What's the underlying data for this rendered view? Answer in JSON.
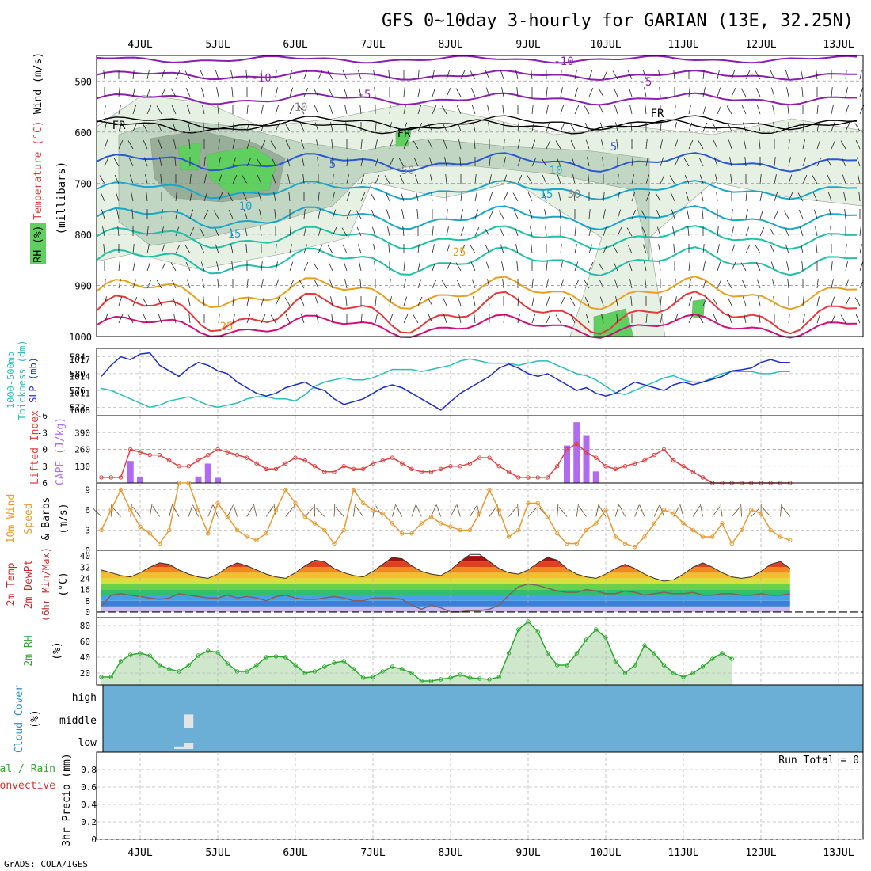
{
  "title": "GFS 0~10day 3-hourly for GARIAN (13E, 32.25N)",
  "footer": "GrADS: COLA/IGES",
  "days": [
    "4JUL",
    "5JUL",
    "6JUL",
    "7JUL",
    "8JUL",
    "9JUL",
    "10JUL",
    "11JUL",
    "12JUL",
    "13JUL"
  ],
  "colors": {
    "rh_light": "#e6f1e4",
    "rh_mid": "#c2d6c4",
    "rh_dark": "#98ae98",
    "rh_green": "#5fd05f",
    "wind_purple": "#8a1fb0",
    "temp_fr": "#000000",
    "temp_blue": "#2a58cf",
    "temp_cyan": "#1aa6c9",
    "temp_teal": "#1fbfa8",
    "temp_orange": "#e6a020",
    "temp_red": "#e23a3a",
    "temp_magenta": "#d0107a",
    "slp": "#1a2ec8",
    "thickness": "#2bbdb8",
    "cape": "#b06cf0",
    "lifted": "#e04040",
    "wind10": "#e69a30",
    "rh2m": "#2ea82e",
    "cloud": "#6baed6"
  },
  "chart_data": [
    {
      "type": "heatmap",
      "panel": "upper-air",
      "ylabel": "(millibars)",
      "side_labels": [
        "RH (%)",
        "Temperature (°C)",
        "Wind (m/s)"
      ],
      "ylim": [
        1000,
        450
      ],
      "ticks": [
        "500",
        "600",
        "700",
        "800",
        "900",
        "1000"
      ],
      "contour_labels": [
        "-10",
        "-10",
        "-5",
        "-5",
        "FR",
        "FR",
        "FR",
        "5",
        "5",
        "10",
        "10",
        "15",
        "15",
        "25",
        "25",
        "10",
        "50",
        "30"
      ]
    },
    {
      "type": "line",
      "panel": "slp-thickness",
      "side_labels": [
        "1000-500mb",
        "Thickness (dm)",
        "SLP (mb)"
      ],
      "left_ticks": [
        "584",
        "580",
        "576",
        "572"
      ],
      "right_ticks": [
        "1017",
        "1014",
        "1011",
        "1008"
      ],
      "left_range": [
        570,
        586
      ],
      "right_range": [
        1007,
        1019
      ],
      "series": [
        {
          "name": "SLP (mb)",
          "axis": "right",
          "values": [
            1014,
            1016,
            1017.5,
            1017,
            1018,
            1018.2,
            1016,
            1015,
            1014,
            1015.5,
            1016.5,
            1016,
            1015,
            1014.5,
            1013,
            1012,
            1011,
            1010.5,
            1011,
            1012,
            1012.5,
            1013,
            1012,
            1011.5,
            1010,
            1009,
            1009.5,
            1010,
            1011,
            1012,
            1012.5,
            1012,
            1011,
            1010,
            1009,
            1008,
            1009.5,
            1011,
            1012,
            1013,
            1014,
            1015.5,
            1016.2,
            1015.5,
            1014.5,
            1014,
            1014.5,
            1013.5,
            1012.5,
            1011.5,
            1012,
            1011,
            1010.5,
            1011,
            1012,
            1013,
            1012.5,
            1012,
            1011.5,
            1012.5,
            1013,
            1012.5,
            1013,
            1013.5,
            1014,
            1015,
            1015.2,
            1015.5,
            1016.5,
            1017,
            1016.5,
            1016.5
          ]
        },
        {
          "name": "Thickness (dm)",
          "axis": "left",
          "values": [
            576.5,
            576,
            575,
            574,
            573,
            572,
            572.5,
            573.5,
            574,
            574.5,
            573.5,
            572.5,
            572,
            572.5,
            573,
            574,
            574.5,
            574.5,
            574,
            574,
            573.5,
            575,
            577,
            578,
            578.5,
            579,
            578.5,
            578.5,
            579,
            580,
            581,
            581,
            581,
            580.5,
            581,
            581.5,
            582,
            583,
            583.5,
            583,
            582.5,
            582.5,
            582.5,
            582,
            582.5,
            583,
            583,
            582,
            581,
            580,
            579.5,
            578.5,
            577,
            575.5,
            575,
            576,
            577,
            578,
            579,
            579.5,
            578.5,
            578,
            578,
            579,
            580,
            580.5,
            580.5,
            580.5,
            580,
            580,
            580.5,
            580.5
          ]
        }
      ]
    },
    {
      "type": "bar",
      "panel": "cape-lifted",
      "side_labels": [
        "Lifted Index",
        "CAPE (J/kg)"
      ],
      "left_ticks": [
        "-6",
        "-3",
        "0",
        "3",
        "6"
      ],
      "right_ticks": [
        "390",
        "260",
        "130"
      ],
      "left_range": [
        6,
        -6
      ],
      "right_range": [
        0,
        520
      ],
      "series": [
        {
          "name": "CAPE (J/kg)",
          "axis": "right",
          "values": [
            0,
            0,
            0,
            170,
            50,
            0,
            0,
            0,
            0,
            0,
            50,
            150,
            40,
            0,
            0,
            0,
            0,
            0,
            0,
            0,
            0,
            0,
            0,
            0,
            0,
            0,
            0,
            0,
            0,
            0,
            0,
            0,
            0,
            0,
            0,
            0,
            0,
            0,
            0,
            0,
            0,
            0,
            0,
            0,
            0,
            0,
            0,
            0,
            290,
            470,
            370,
            90,
            0,
            0,
            0,
            0,
            0,
            0,
            0,
            0,
            0,
            0,
            0,
            0,
            0,
            0,
            0,
            0,
            0,
            0,
            0,
            0
          ]
        },
        {
          "name": "Lifted Index",
          "axis": "left",
          "values": [
            5,
            5,
            5,
            0,
            0.5,
            1,
            1,
            2,
            3,
            3,
            2,
            1,
            0,
            0.5,
            1,
            1.5,
            2.5,
            3.5,
            3.5,
            2.5,
            1.5,
            2,
            3,
            4,
            4,
            3,
            3.5,
            3.5,
            2.5,
            2,
            1.5,
            2.5,
            3.5,
            4,
            4,
            3.5,
            3,
            3,
            2.5,
            1.5,
            1.5,
            3,
            4,
            5,
            5,
            5,
            5,
            3,
            0,
            -1,
            0.5,
            1.5,
            3,
            3.5,
            3,
            2.5,
            2,
            1,
            0,
            2,
            3,
            4,
            5,
            6,
            6,
            6,
            6,
            6,
            6,
            6,
            6,
            6
          ]
        }
      ]
    },
    {
      "type": "line",
      "panel": "wind10",
      "side_labels": [
        "10m Wind",
        "Speed",
        "& Barbs"
      ],
      "ylabel": "(m/s)",
      "ticks": [
        "9",
        "6",
        "3",
        "0"
      ],
      "ylim": [
        0,
        10
      ],
      "series": [
        {
          "name": "Speed",
          "values": [
            3,
            6,
            9,
            6,
            3.5,
            2.5,
            1,
            3,
            10,
            10,
            6,
            2.5,
            7,
            5,
            3,
            2,
            1.5,
            2.5,
            6,
            9,
            7,
            5,
            4,
            3,
            1,
            3,
            9,
            7,
            6,
            5.5,
            4,
            2.5,
            2.5,
            4,
            5,
            4,
            3.5,
            3,
            3,
            5.5,
            9,
            6,
            2,
            3,
            7,
            7,
            5,
            2.5,
            1,
            1,
            3,
            4,
            6,
            2,
            1,
            0.5,
            2,
            4,
            6,
            5.5,
            4,
            3,
            2,
            2,
            4,
            1,
            3,
            6,
            5.5,
            3,
            2,
            1.5
          ]
        }
      ]
    },
    {
      "type": "area",
      "panel": "temperature",
      "side_labels": [
        "2m Temp",
        "2m DewPt",
        "(6hr Min/Max)"
      ],
      "ylabel": "(°C)",
      "ticks": [
        "40",
        "32",
        "24",
        "16",
        "8",
        "0"
      ],
      "ylim": [
        -4,
        44
      ],
      "series": [
        {
          "name": "2m Temp",
          "values": [
            30,
            28,
            26,
            25,
            28,
            32,
            35,
            34,
            30,
            27,
            25,
            24,
            27,
            32,
            35,
            33,
            30,
            27,
            25,
            24,
            28,
            33,
            37,
            36,
            31,
            28,
            26,
            25,
            29,
            34,
            39,
            38,
            33,
            29,
            27,
            26,
            30,
            36,
            41,
            41,
            36,
            31,
            28,
            27,
            30,
            35,
            39,
            37,
            31,
            27,
            25,
            24,
            27,
            31,
            34,
            31,
            27,
            24,
            22,
            23,
            27,
            32,
            35,
            32,
            28,
            25,
            24,
            25,
            29,
            34,
            36,
            31
          ]
        },
        {
          "name": "2m DewPt",
          "values": [
            4,
            12,
            13,
            12,
            11,
            10,
            9,
            10,
            13,
            12,
            11,
            10,
            10,
            12,
            10,
            11,
            10,
            8,
            11,
            12,
            10,
            9,
            9,
            10,
            11,
            10,
            8,
            8,
            10,
            10,
            10,
            9,
            5,
            2,
            5,
            3,
            0,
            0,
            1,
            1,
            2,
            5,
            12,
            18,
            20,
            19,
            17,
            15,
            14,
            14,
            16,
            15,
            13,
            13,
            15,
            14,
            12,
            13,
            14,
            13,
            13,
            14,
            12,
            12,
            13,
            13,
            12,
            12,
            13,
            12,
            12,
            13
          ]
        }
      ]
    },
    {
      "type": "area",
      "panel": "rh2m",
      "side_labels": [
        "2m RH"
      ],
      "ylabel": "(%)",
      "ticks": [
        "80",
        "60",
        "40",
        "20"
      ],
      "ylim": [
        5,
        90
      ],
      "series": [
        {
          "name": "2m RH",
          "values": [
            15,
            15,
            35,
            43,
            45,
            42,
            30,
            25,
            22,
            30,
            42,
            48,
            46,
            32,
            22,
            22,
            30,
            40,
            41,
            40,
            30,
            20,
            22,
            28,
            33,
            35,
            25,
            14,
            15,
            22,
            28,
            25,
            20,
            10,
            10,
            12,
            14,
            18,
            14,
            13,
            12,
            15,
            45,
            75,
            85,
            72,
            45,
            30,
            30,
            45,
            62,
            75,
            65,
            35,
            20,
            30,
            55,
            45,
            30,
            20,
            15,
            20,
            28,
            38,
            45,
            38
          ]
        }
      ]
    },
    {
      "type": "bar",
      "panel": "cloud",
      "side_labels": [
        "Cloud Cover",
        "(%)"
      ],
      "ticks": [
        "high",
        "middle",
        "low"
      ],
      "series": [
        {
          "name": "low",
          "values": [
            0,
            0,
            0,
            0,
            0,
            0,
            0,
            0,
            20,
            50,
            0,
            0,
            0,
            0,
            0,
            0,
            0,
            0,
            0,
            0,
            0,
            0,
            0,
            0,
            0,
            0,
            0,
            0,
            0,
            0,
            0,
            0,
            0,
            0,
            0,
            0,
            0,
            0,
            0,
            0,
            0,
            0,
            0,
            0,
            0,
            0,
            0,
            0,
            0,
            0,
            0,
            0,
            0,
            0,
            0,
            0,
            0,
            0,
            0,
            0,
            0,
            0,
            0,
            0,
            0,
            0,
            0,
            0,
            0,
            0,
            0,
            0
          ]
        },
        {
          "name": "middle",
          "values": [
            0,
            0,
            0,
            0,
            0,
            0,
            0,
            0,
            0,
            80,
            0,
            0,
            0,
            0,
            0,
            0,
            0,
            0,
            0,
            0,
            0,
            0,
            0,
            0,
            0,
            0,
            0,
            0,
            0,
            0,
            0,
            0,
            0,
            0,
            0,
            0,
            0,
            0,
            0,
            0,
            0,
            0,
            0,
            0,
            0,
            0,
            0,
            0,
            0,
            0,
            0,
            0,
            0,
            0,
            0,
            0,
            0,
            0,
            0,
            0,
            0,
            0,
            0,
            0,
            0,
            0,
            0,
            0,
            0,
            0,
            0,
            0
          ]
        }
      ]
    },
    {
      "type": "line",
      "panel": "precip",
      "side_labels": [
        "Total / Rain",
        "Convective",
        "3hr Precip (mm)"
      ],
      "annotation": "Run Total = 0",
      "ticks": [
        "0.8",
        "0.6",
        "0.4",
        "0.2",
        "0"
      ],
      "ylim": [
        0,
        1
      ],
      "series": []
    }
  ]
}
